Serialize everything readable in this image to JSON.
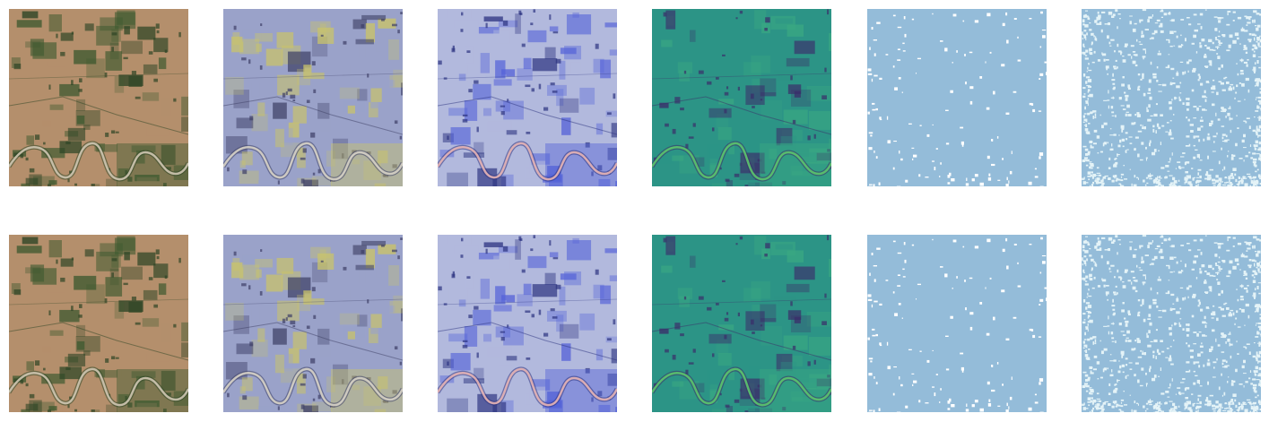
{
  "figure": {
    "rows": [
      {
        "panels": [
          {
            "kind": "true-color",
            "colors": {
              "base": "#b48f6c",
              "veg": "#3f5a30",
              "dark": "#2d4525",
              "river": "#cfc7b3"
            }
          },
          {
            "kind": "false-color-yellow",
            "colors": {
              "base": "#9aa2c9",
              "veg": "#c9c36a",
              "dark": "#3d3f66",
              "river": "#d8d4c8"
            }
          },
          {
            "kind": "false-color-blue",
            "colors": {
              "base": "#b2b9dd",
              "veg": "#5563d8",
              "dark": "#2c3380",
              "river": "#e8b5b5"
            }
          },
          {
            "kind": "index-viridis",
            "colors": {
              "base": "#2c9486",
              "veg": "#3aa882",
              "dark": "#3b2e6a",
              "river": "#5cc56d"
            }
          },
          {
            "kind": "mask-sparse",
            "colors": {
              "base": "#94bcd9",
              "spot": "#ffffff"
            }
          },
          {
            "kind": "mask-dense",
            "colors": {
              "base": "#94bcd9",
              "spot": "#e4f3f7"
            }
          }
        ]
      },
      {
        "panels": [
          {
            "kind": "true-color",
            "colors": {
              "base": "#b48f6c",
              "veg": "#3f5a30",
              "dark": "#2d4525",
              "river": "#cfc7b3"
            }
          },
          {
            "kind": "false-color-yellow",
            "colors": {
              "base": "#9aa2c9",
              "veg": "#c9c36a",
              "dark": "#3d3f66",
              "river": "#d8d4c8"
            }
          },
          {
            "kind": "false-color-blue",
            "colors": {
              "base": "#b2b9dd",
              "veg": "#5563d8",
              "dark": "#2c3380",
              "river": "#e8b5b5"
            }
          },
          {
            "kind": "index-viridis",
            "colors": {
              "base": "#2c9486",
              "veg": "#3aa882",
              "dark": "#3b2e6a",
              "river": "#5cc56d"
            }
          },
          {
            "kind": "mask-sparse",
            "colors": {
              "base": "#94bcd9",
              "spot": "#ffffff"
            }
          },
          {
            "kind": "mask-dense",
            "colors": {
              "base": "#94bcd9",
              "spot": "#e4f3f7"
            }
          }
        ]
      }
    ]
  }
}
